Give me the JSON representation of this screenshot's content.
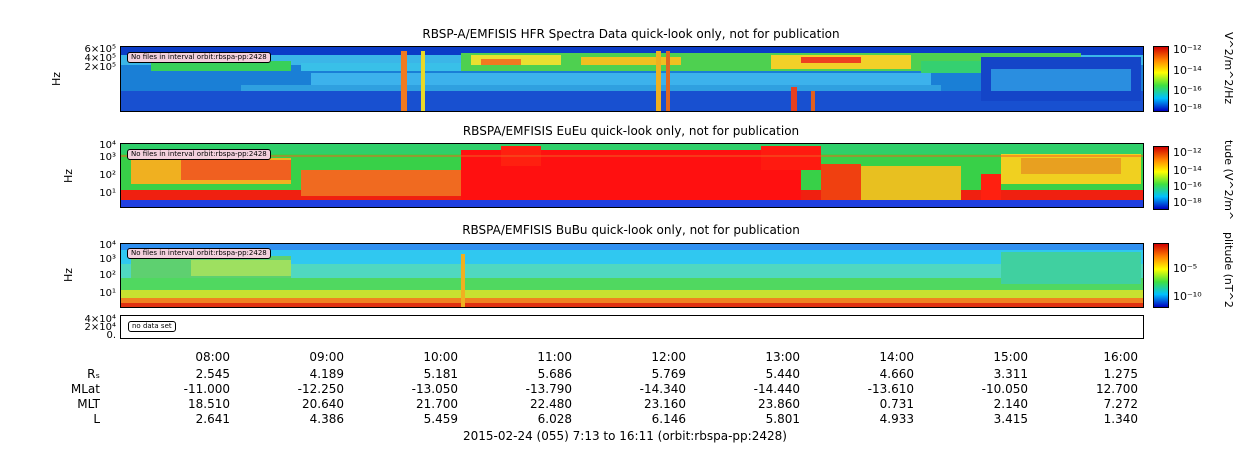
{
  "chart_data": [
    {
      "type": "heatmap",
      "title": "RBSP-A/EMFISIS  HFR Spectra Data quick-look only, not for publication",
      "ylabel": "Hz",
      "ytick_labels": [
        "6×10⁵",
        "4×10⁵",
        "2×10⁵"
      ],
      "colorbar_label": "V^2/m^2/Hz",
      "colorbar_ticks": [
        "10⁻¹²",
        "10⁻¹⁴",
        "10⁻¹⁶",
        "10⁻¹⁸"
      ],
      "annotation": "No files in interval orbit:rbspa-pp:2428"
    },
    {
      "type": "heatmap",
      "title": "RBSPA/EMFISIS  EuEu quick-look only, not for publication",
      "ylabel": "Hz",
      "ytick_labels": [
        "10⁴",
        "10³",
        "10²",
        "10¹"
      ],
      "colorbar_label": "tude (V^2/m^",
      "colorbar_ticks": [
        "10⁻¹²",
        "10⁻¹⁴",
        "10⁻¹⁶",
        "10⁻¹⁸"
      ],
      "annotation": "No files in interval orbit:rbspa-pp:2428"
    },
    {
      "type": "heatmap",
      "title": "RBSPA/EMFISIS  BuBu quick-look only, not for publication",
      "ylabel": "Hz",
      "ytick_labels": [
        "10⁴",
        "10³",
        "10²",
        "10¹"
      ],
      "colorbar_label": "plitude (nT^2",
      "colorbar_ticks": [
        "10⁻⁵",
        "10⁻¹⁰"
      ],
      "annotation": "No files in interval orbit:rbspa-pp:2428"
    },
    {
      "type": "line",
      "title": "",
      "ytick_labels": [
        "4×10⁴",
        "2×10⁴",
        "0."
      ],
      "annotation": "no data set"
    }
  ],
  "time_axis": {
    "ticks": [
      "08:00",
      "09:00",
      "10:00",
      "11:00",
      "12:00",
      "13:00",
      "14:00",
      "15:00",
      "16:00"
    ]
  },
  "ephemeris": {
    "rows": [
      {
        "label": "Rₛ",
        "values": [
          "2.545",
          "4.189",
          "5.181",
          "5.686",
          "5.769",
          "5.440",
          "4.660",
          "3.311",
          "1.275"
        ]
      },
      {
        "label": "MLat",
        "values": [
          "-11.000",
          "-12.250",
          "-13.050",
          "-13.790",
          "-14.340",
          "-14.440",
          "-13.610",
          "-10.050",
          "12.700"
        ]
      },
      {
        "label": "MLT",
        "values": [
          "18.510",
          "20.640",
          "21.700",
          "22.480",
          "23.160",
          "23.860",
          "0.731",
          "2.140",
          "7.272"
        ]
      },
      {
        "label": "L",
        "values": [
          "2.641",
          "4.386",
          "5.459",
          "6.028",
          "6.146",
          "5.801",
          "4.933",
          "3.415",
          "1.340"
        ]
      }
    ]
  },
  "footer": "2015-02-24 (055) 7:13 to 16:11 (orbit:rbspa-pp:2428)"
}
